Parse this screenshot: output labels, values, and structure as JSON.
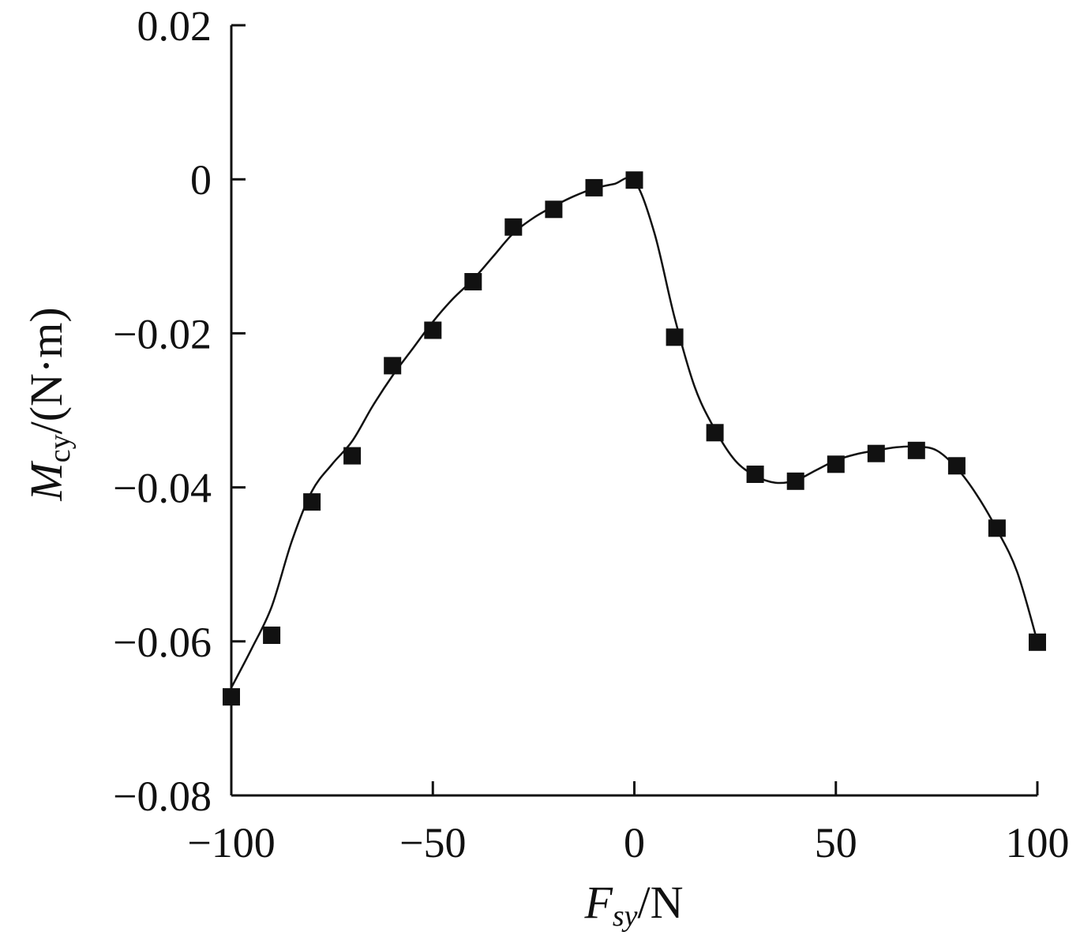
{
  "chart_data": {
    "type": "scatter",
    "title": "",
    "xlabel": {
      "main": "F",
      "sub": "sy",
      "unit": "/N"
    },
    "ylabel": {
      "main": "M",
      "sub": "cy",
      "unit": "/(N·m)"
    },
    "xlim": [
      -100,
      100
    ],
    "ylim": [
      -0.08,
      0.02
    ],
    "xticks": [
      -100,
      -50,
      0,
      50,
      100
    ],
    "xtick_labels": [
      "−100",
      "−50",
      "0",
      "50",
      "100"
    ],
    "yticks": [
      0.02,
      0,
      -0.02,
      -0.04,
      -0.06,
      -0.08
    ],
    "ytick_labels": [
      "0.02",
      "0",
      "−0.02",
      "−0.04",
      "−0.06",
      "−0.08"
    ],
    "grid": false,
    "legend": "none",
    "series": [
      {
        "marker": "filled-square",
        "fit_line": "smooth",
        "x": [
          -100,
          -90,
          -80,
          -70,
          -60,
          -50,
          -40,
          -30,
          -20,
          -10,
          0,
          10,
          20,
          30,
          40,
          50,
          60,
          70,
          80,
          90,
          100
        ],
        "y": [
          -0.0672,
          -0.0592,
          -0.0419,
          -0.0359,
          -0.0242,
          -0.0196,
          -0.0133,
          -0.0062,
          -0.0039,
          -0.0011,
          -0.0001,
          -0.0205,
          -0.0329,
          -0.0383,
          -0.0392,
          -0.037,
          -0.0356,
          -0.0352,
          -0.0372,
          -0.0453,
          -0.0601
        ]
      }
    ],
    "fit_curve": {
      "x": [
        -100,
        -95,
        -90,
        -85,
        -80,
        -75,
        -70,
        -65,
        -60,
        -55,
        -50,
        -45,
        -40,
        -35,
        -30,
        -25,
        -20,
        -15,
        -10,
        -5,
        0,
        5,
        10,
        15,
        20,
        25,
        30,
        35,
        40,
        45,
        50,
        55,
        60,
        65,
        70,
        75,
        80,
        85,
        90,
        95,
        100
      ],
      "y": [
        -0.066,
        -0.061,
        -0.0555,
        -0.047,
        -0.0405,
        -0.037,
        -0.034,
        -0.0295,
        -0.0255,
        -0.022,
        -0.0185,
        -0.0155,
        -0.013,
        -0.01,
        -0.007,
        -0.005,
        -0.0035,
        -0.0022,
        -0.0012,
        -0.0006,
        -0.0002,
        -0.007,
        -0.018,
        -0.027,
        -0.0325,
        -0.0365,
        -0.0385,
        -0.0394,
        -0.0391,
        -0.0378,
        -0.0365,
        -0.0357,
        -0.0352,
        -0.0348,
        -0.0347,
        -0.0352,
        -0.0375,
        -0.041,
        -0.0455,
        -0.051,
        -0.06
      ]
    }
  }
}
